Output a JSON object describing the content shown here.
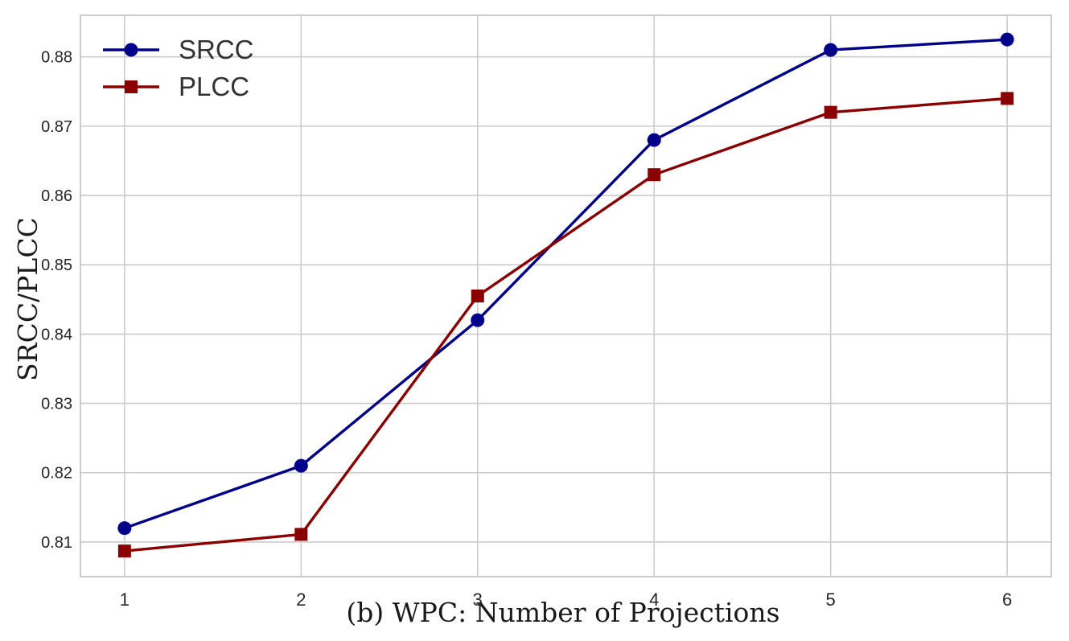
{
  "figure": {
    "background_color": "#ffffff",
    "grid_color": "#cccccc",
    "spine_color": "#c6c6c6",
    "tick_text_color": "#262626",
    "title_text_color": "#1a1a1a"
  },
  "chart_data": {
    "type": "line",
    "title": "",
    "xlabel": "(b) WPC: Number of Projections",
    "ylabel": "SRCC/PLCC",
    "x": [
      1,
      2,
      3,
      4,
      5,
      6
    ],
    "series": [
      {
        "name": "SRCC",
        "color": "#00008b",
        "marker": "circle",
        "values": [
          0.812,
          0.821,
          0.842,
          0.868,
          0.881,
          0.8825
        ]
      },
      {
        "name": "PLCC",
        "color": "#8b0000",
        "marker": "square",
        "values": [
          0.8087,
          0.8111,
          0.8455,
          0.863,
          0.872,
          0.874
        ]
      }
    ],
    "xticks": [
      1,
      2,
      3,
      4,
      5,
      6
    ],
    "yticks": [
      0.81,
      0.82,
      0.83,
      0.84,
      0.85,
      0.86,
      0.87,
      0.88
    ],
    "xlim": [
      0.75,
      6.25
    ],
    "ylim": [
      0.805,
      0.886
    ],
    "grid": "on",
    "legend_position": "upper-left",
    "legend_labels": [
      "SRCC",
      "PLCC"
    ]
  }
}
